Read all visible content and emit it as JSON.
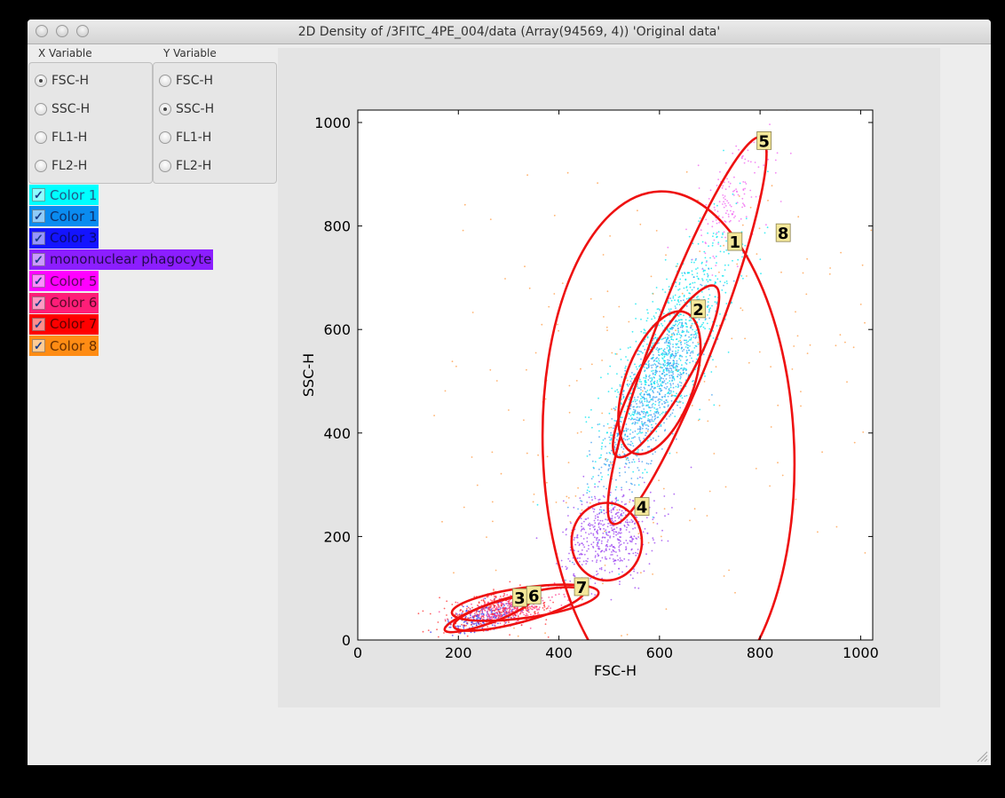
{
  "window": {
    "title": "2D Density of /3FITC_4PE_004/data (Array(94569, 4)) 'Original data'"
  },
  "x_variable": {
    "label": "X Variable",
    "options": [
      "FSC-H",
      "SSC-H",
      "FL1-H",
      "FL2-H"
    ],
    "selected": "FSC-H"
  },
  "y_variable": {
    "label": "Y Variable",
    "options": [
      "FSC-H",
      "SSC-H",
      "FL1-H",
      "FL2-H"
    ],
    "selected": "SSC-H"
  },
  "colors": [
    {
      "label": "Color 1",
      "bg": "#00ffff",
      "fg": "#1f5a8a",
      "checked": true
    },
    {
      "label": "Color 1",
      "bg": "#0a8cf0",
      "fg": "#0f2f6a",
      "checked": true
    },
    {
      "label": "Color 3",
      "bg": "#1414ff",
      "fg": "#0a0a70",
      "checked": true
    },
    {
      "label": "mononuclear phagocyte",
      "bg": "#8c1eff",
      "fg": "#240a50",
      "checked": true
    },
    {
      "label": "Color 5",
      "bg": "#ff00ff",
      "fg": "#5a0a5a",
      "checked": true
    },
    {
      "label": "Color 6",
      "bg": "#ff1e78",
      "fg": "#5a0a28",
      "checked": true
    },
    {
      "label": "Color 7",
      "bg": "#ff0000",
      "fg": "#600000",
      "checked": true
    },
    {
      "label": "Color 8",
      "bg": "#ff8c14",
      "fg": "#6a3000",
      "checked": true
    }
  ],
  "chart_data": {
    "type": "scatter",
    "xlabel": "FSC-H",
    "ylabel": "SSC-H",
    "xlim": [
      0,
      1024
    ],
    "ylim": [
      0,
      1024
    ],
    "xticks": [
      0,
      200,
      400,
      600,
      800,
      1000
    ],
    "yticks": [
      0,
      200,
      400,
      600,
      800,
      1000
    ],
    "clusters": [
      {
        "name": "Color 1",
        "color": "#00e6f0",
        "center": [
          620,
          560
        ],
        "spread": [
          65,
          110
        ],
        "corr": 0.75,
        "count": 900
      },
      {
        "name": "Color 1",
        "color": "#3c9cf0",
        "center": [
          590,
          480
        ],
        "spread": [
          55,
          95
        ],
        "corr": 0.8,
        "count": 700
      },
      {
        "name": "Color 3",
        "color": "#3a3af0",
        "center": [
          250,
          45
        ],
        "spread": [
          35,
          15
        ],
        "corr": 0.6,
        "count": 250
      },
      {
        "name": "mononuclear phagocyte",
        "color": "#9a40f0",
        "center": [
          500,
          205
        ],
        "spread": [
          45,
          45
        ],
        "corr": 0.2,
        "count": 500
      },
      {
        "name": "Color 5",
        "color": "#f060f0",
        "center": [
          740,
          840
        ],
        "spread": [
          40,
          60
        ],
        "corr": 0.5,
        "count": 150
      },
      {
        "name": "Color 6",
        "color": "#ff3c8c",
        "center": [
          300,
          60
        ],
        "spread": [
          50,
          15
        ],
        "corr": 0.4,
        "count": 350
      },
      {
        "name": "Color 7",
        "color": "#ff3030",
        "center": [
          280,
          55
        ],
        "spread": [
          60,
          20
        ],
        "corr": 0.4,
        "count": 250
      },
      {
        "name": "Color 8",
        "color": "#ff9a40",
        "center": [
          560,
          450
        ],
        "spread": [
          260,
          260
        ],
        "corr": 0.3,
        "count": 260
      }
    ],
    "gates": [
      {
        "label": "1",
        "cx": 613,
        "cy": 519,
        "rx": 46,
        "ry": 190,
        "angle_deg": 30,
        "label_at": [
          750,
          770
        ]
      },
      {
        "label": "2",
        "cx": 600,
        "cy": 497,
        "rx": 68,
        "ry": 145,
        "angle_deg": 20,
        "label_at": [
          677,
          640
        ]
      },
      {
        "label": "3",
        "cx": 260,
        "cy": 50,
        "rx": 18,
        "ry": 90,
        "angle_deg": 70,
        "label_at": [
          322,
          82
        ]
      },
      {
        "label": "4",
        "cx": 495,
        "cy": 190,
        "rx": 70,
        "ry": 75,
        "angle_deg": 0,
        "label_at": [
          565,
          258
        ]
      },
      {
        "label": "5",
        "cx": 655,
        "cy": 598,
        "rx": 60,
        "ry": 400,
        "angle_deg": 21,
        "label_at": [
          808,
          965
        ]
      },
      {
        "label": "6",
        "cx": 320,
        "cy": 60,
        "rx": 27,
        "ry": 130,
        "angle_deg": 75,
        "label_at": [
          350,
          87
        ]
      },
      {
        "label": "7",
        "cx": 333,
        "cy": 72,
        "rx": 30,
        "ry": 143,
        "angle_deg": 82,
        "label_at": [
          445,
          103
        ]
      },
      {
        "label": "8",
        "cx": 618,
        "cy": 367,
        "rx": 250,
        "ry": 500,
        "angle_deg": -2,
        "label_at": [
          846,
          787
        ]
      }
    ]
  }
}
